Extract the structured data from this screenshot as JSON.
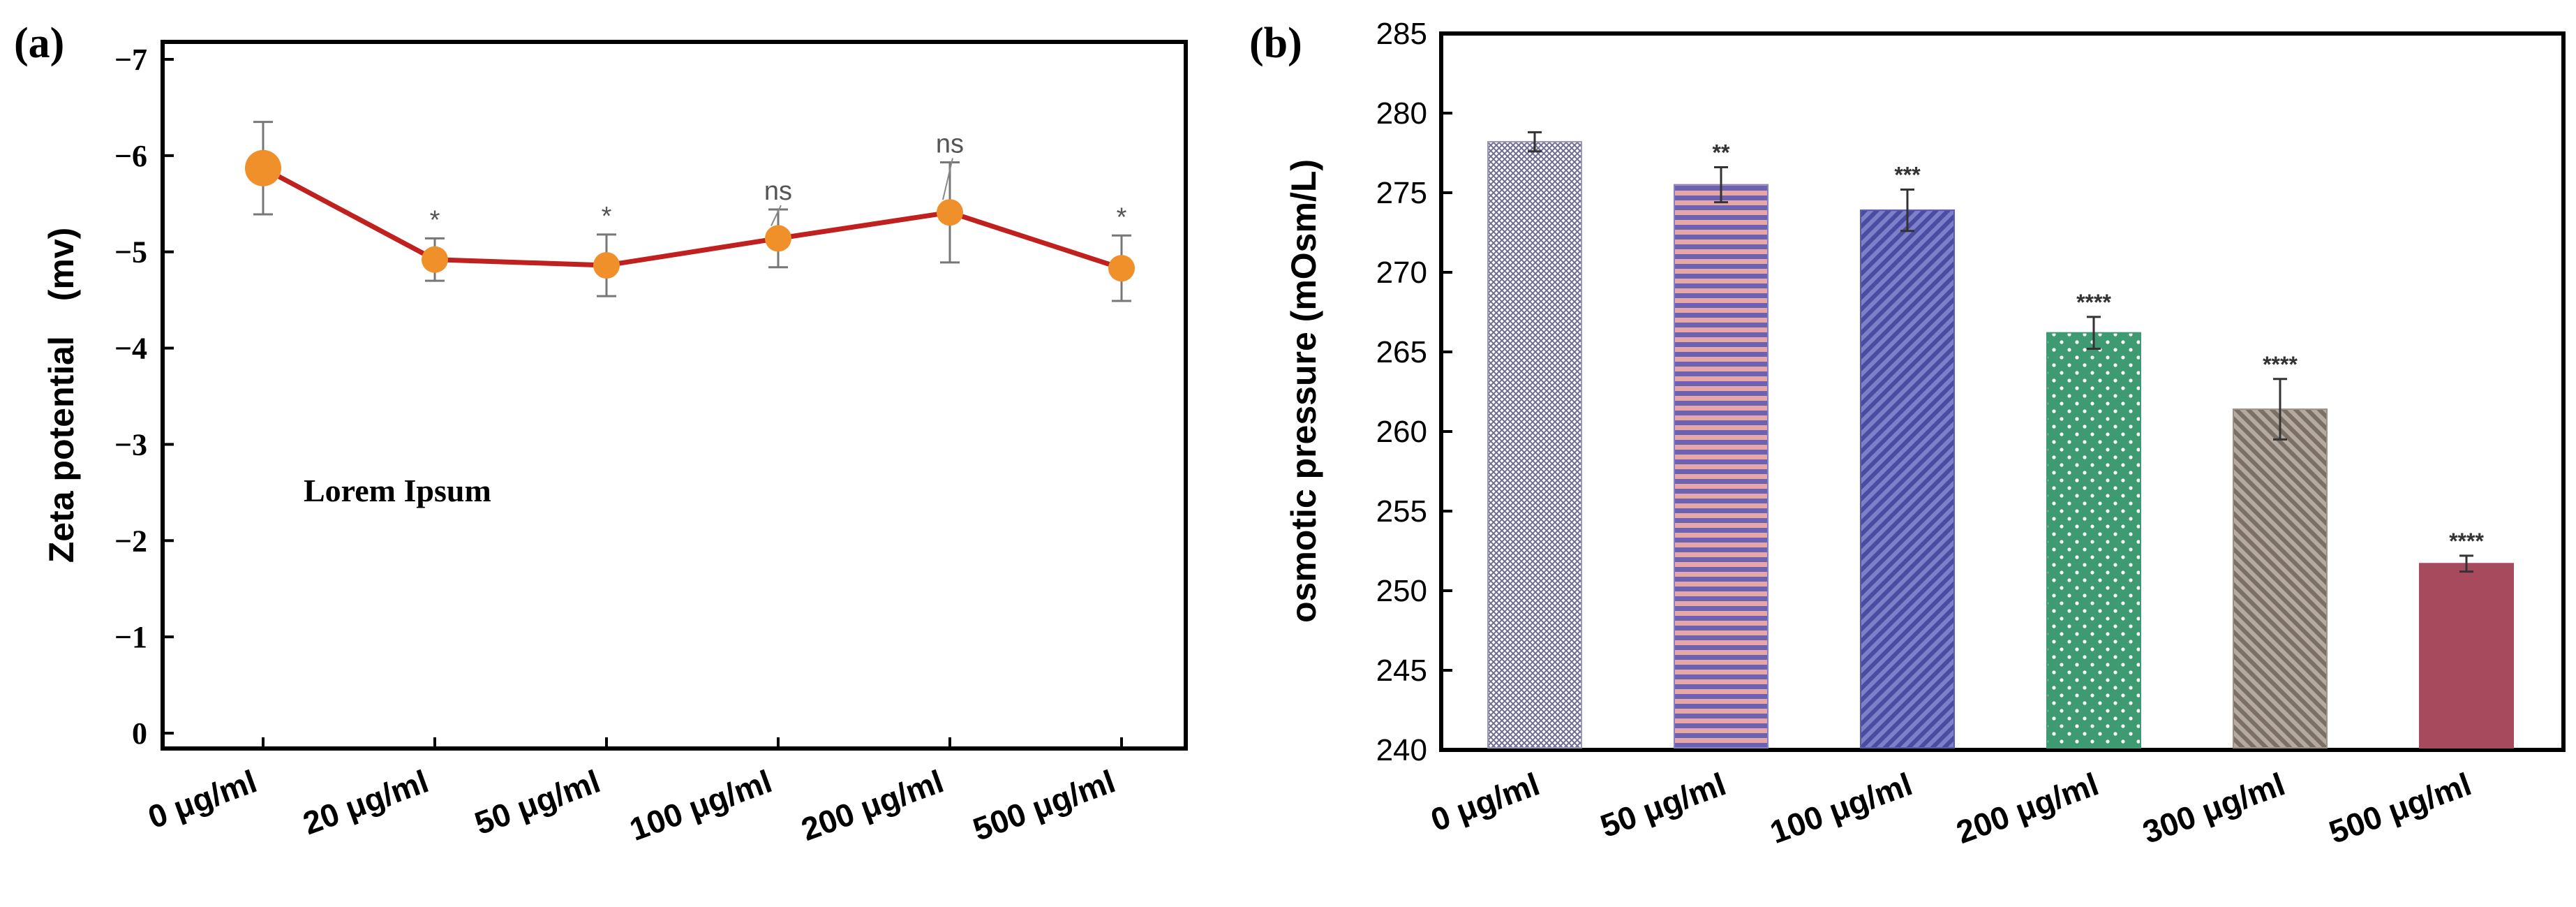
{
  "chart_data": [
    {
      "panel": "(a)",
      "type": "line",
      "categories": [
        "0 μg/ml",
        "20 μg/ml",
        "50 μg/ml",
        "100 μg/ml",
        "200 μg/ml",
        "500 μg/ml"
      ],
      "values": [
        5.87,
        4.92,
        4.86,
        5.14,
        5.41,
        4.83
      ],
      "errors": [
        0.48,
        0.22,
        0.32,
        0.3,
        0.52,
        0.34
      ],
      "significance": [
        "",
        "*",
        "*",
        "ns",
        "ns",
        "*"
      ],
      "yticks": [
        "−7",
        "−6",
        "−5",
        "−4",
        "−3",
        "−2",
        "−1",
        "0"
      ],
      "ytick_values": [
        7,
        6,
        5,
        4,
        3,
        2,
        1,
        0
      ],
      "ylim": [
        0,
        7
      ],
      "ylabel": "Zeta potential　(mv)",
      "annotation": "Lorem Ipsum",
      "line_color": "#c0201e",
      "marker_color": "#f0902a"
    },
    {
      "panel": "(b)",
      "type": "bar",
      "categories": [
        "0 μg/ml",
        "50 μg/ml",
        "100 μg/ml",
        "200 μg/ml",
        "300 μg/ml",
        "500 μg/ml"
      ],
      "values": [
        278.2,
        275.5,
        273.9,
        266.2,
        261.4,
        251.7
      ],
      "errors": [
        0.6,
        1.1,
        1.3,
        1.0,
        1.9,
        0.5
      ],
      "significance": [
        "",
        "**",
        "***",
        "****",
        "****",
        "****"
      ],
      "yticks": [
        "240",
        "245",
        "250",
        "255",
        "260",
        "265",
        "270",
        "275",
        "280",
        "285"
      ],
      "ytick_values": [
        240,
        245,
        250,
        255,
        260,
        265,
        270,
        275,
        280,
        285
      ],
      "ylim": [
        240,
        285
      ],
      "ylabel": "osmotic pressure (mOsm/L)",
      "bar_colors": [
        "#9a98b6",
        "#8a82c0",
        "#5a5aae",
        "#3e9a70",
        "#9e9286",
        "#a84a5e"
      ]
    }
  ]
}
